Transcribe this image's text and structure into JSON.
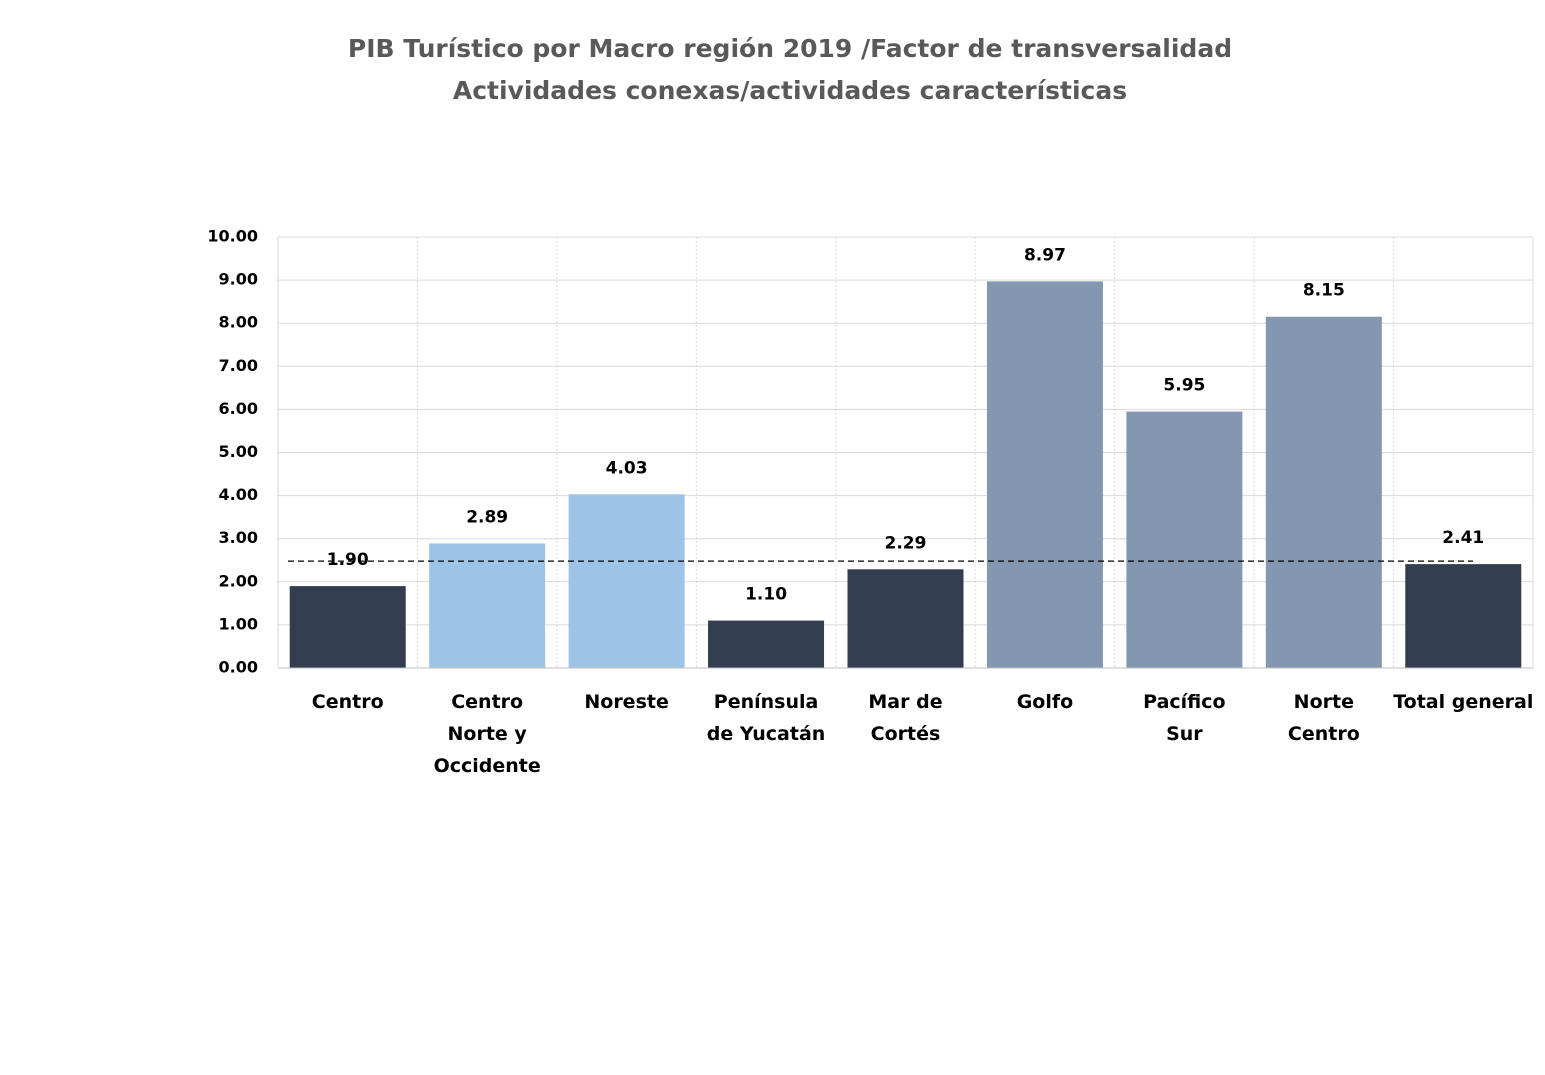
{
  "chart_data": {
    "type": "bar",
    "title": "PIB Turístico por Macro región 2019 /Factor de transversalidad",
    "subtitle": "Actividades conexas/actividades características",
    "categories": [
      "Centro",
      "Centro Norte y Occidente",
      "Noreste",
      "Península de Yucatán",
      "Mar de Cortés",
      "Golfo",
      "Pacífico Sur",
      "Norte Centro",
      "Total general"
    ],
    "values": [
      1.9,
      2.89,
      4.03,
      1.1,
      2.29,
      8.97,
      5.95,
      8.15,
      2.41
    ],
    "value_labels": [
      "1.90",
      "2.89",
      "4.03",
      "1.10",
      "2.29",
      "8.97",
      "5.95",
      "8.15",
      "2.41"
    ],
    "colors": [
      "#323d4f",
      "#9dc3e6",
      "#9dc3e6",
      "#323d4f",
      "#323d4f",
      "#8497b0",
      "#8497b0",
      "#8497b0",
      "#323d4f"
    ],
    "ylim": [
      0,
      10
    ],
    "yticks": [
      {
        "value": 0,
        "label": "0.00"
      },
      {
        "value": 1,
        "label": "1.00"
      },
      {
        "value": 2,
        "label": "2.00"
      },
      {
        "value": 3,
        "label": "3.00"
      },
      {
        "value": 4,
        "label": "4.00"
      },
      {
        "value": 5,
        "label": "5.00"
      },
      {
        "value": 6,
        "label": "6.00"
      },
      {
        "value": 7,
        "label": "7.00"
      },
      {
        "value": 8,
        "label": "8.00"
      },
      {
        "value": 9,
        "label": "9.00"
      },
      {
        "value": 10,
        "label": "10.00"
      }
    ],
    "reference_line": 2.48,
    "grid": true
  }
}
